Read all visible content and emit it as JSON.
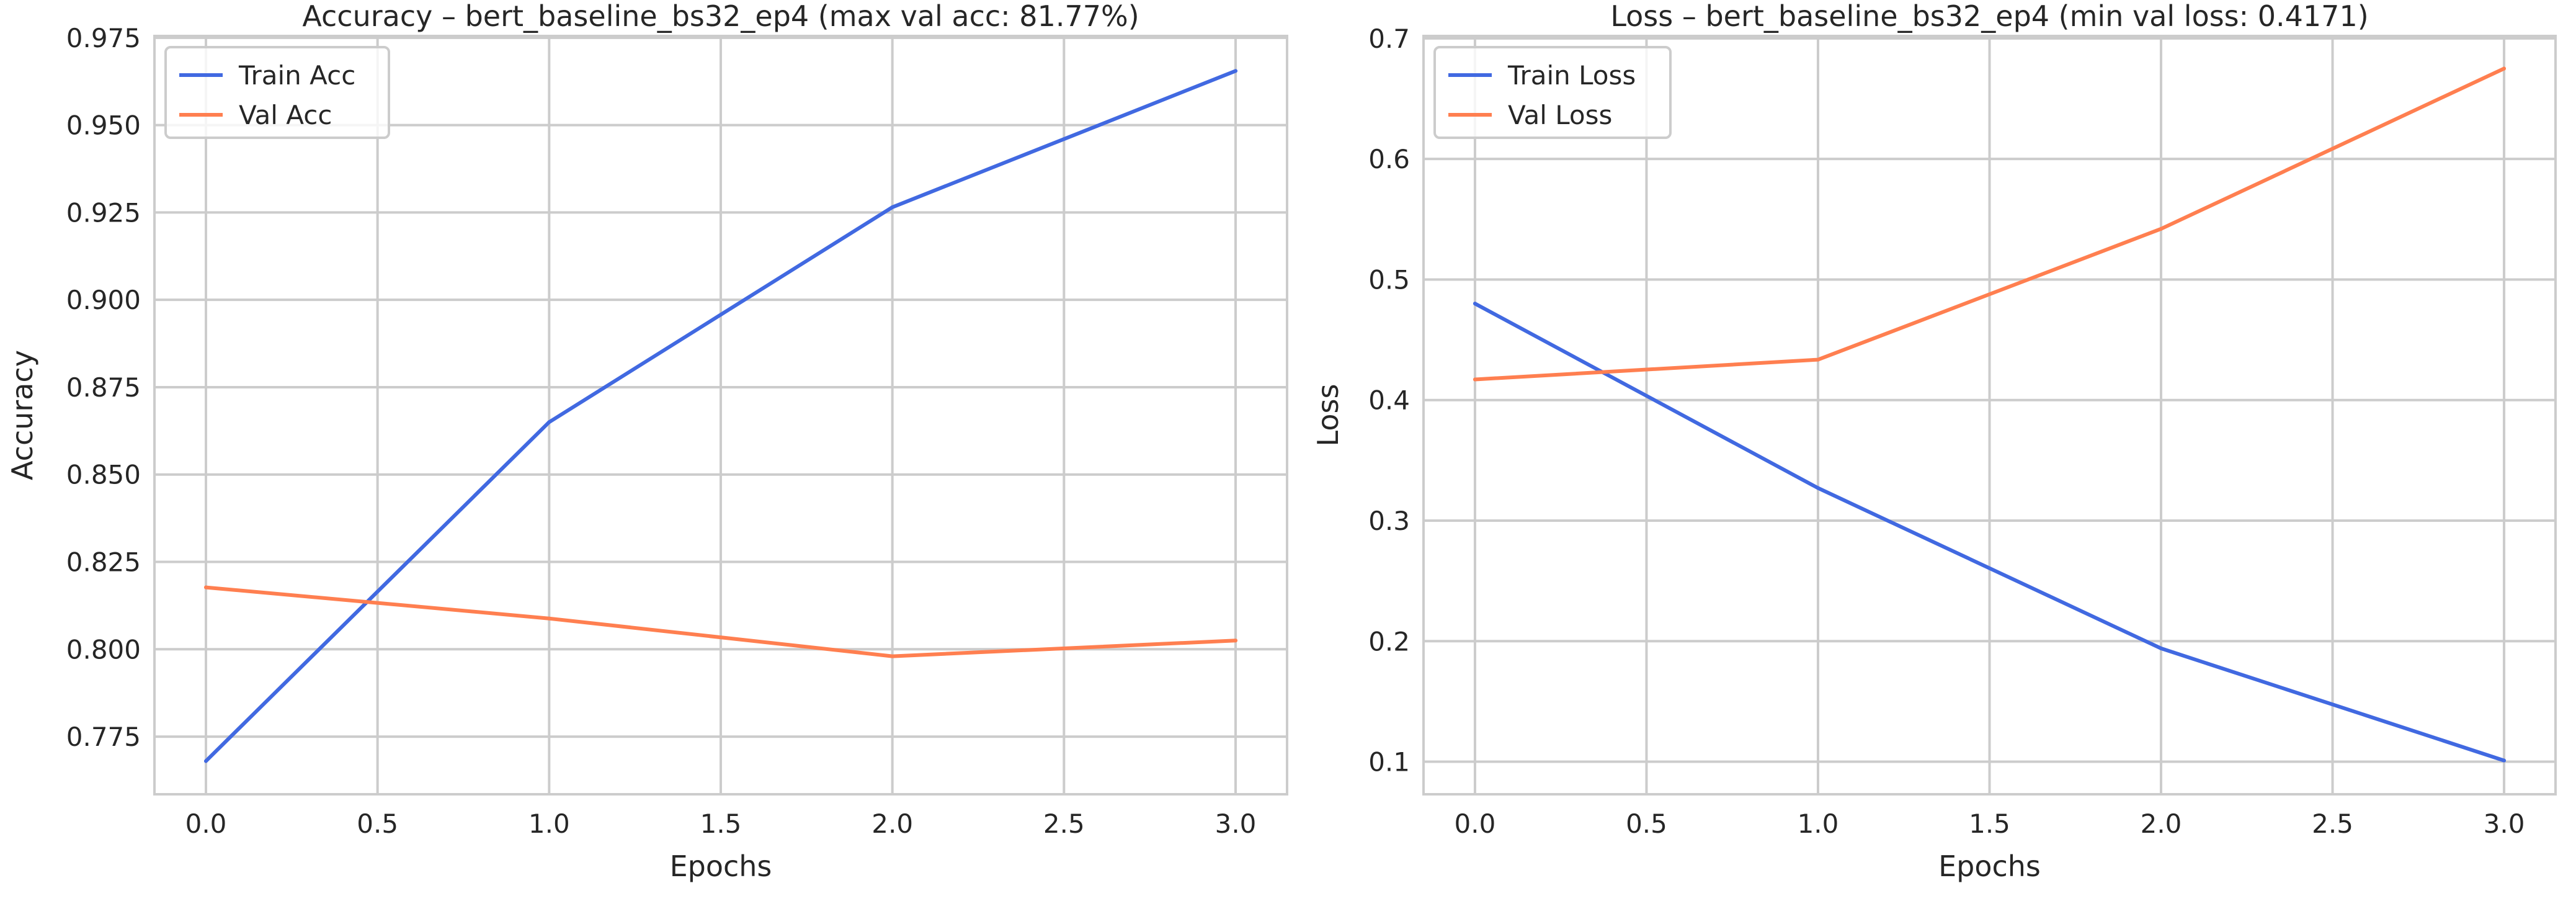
{
  "chart_data": [
    {
      "type": "line",
      "title": "Accuracy – bert_baseline_bs32_ep4 (max val acc: 81.77%)",
      "xlabel": "Epochs",
      "ylabel": "Accuracy",
      "x": [
        0,
        1,
        2,
        3
      ],
      "xticks": [
        "0.0",
        "0.5",
        "1.0",
        "1.5",
        "2.0",
        "2.5",
        "3.0"
      ],
      "yticks": [
        "0.775",
        "0.800",
        "0.825",
        "0.850",
        "0.875",
        "0.900",
        "0.925",
        "0.950",
        "0.975"
      ],
      "xlim": [
        -0.15,
        3.15
      ],
      "ylim": [
        0.7585,
        0.9755
      ],
      "grid": true,
      "legend": "upper left",
      "series": [
        {
          "name": "Train Acc",
          "color": "#4169e1",
          "values": [
            0.768,
            0.865,
            0.9265,
            0.9655
          ]
        },
        {
          "name": "Val Acc",
          "color": "#ff7f50",
          "values": [
            0.8177,
            0.8088,
            0.798,
            0.8025
          ]
        }
      ]
    },
    {
      "type": "line",
      "title": "Loss – bert_baseline_bs32_ep4 (min val loss: 0.4171)",
      "xlabel": "Epochs",
      "ylabel": "Loss",
      "x": [
        0,
        1,
        2,
        3
      ],
      "xticks": [
        "0.0",
        "0.5",
        "1.0",
        "1.5",
        "2.0",
        "2.5",
        "3.0"
      ],
      "yticks": [
        "0.1",
        "0.2",
        "0.3",
        "0.4",
        "0.5",
        "0.6",
        "0.7"
      ],
      "xlim": [
        -0.15,
        3.15
      ],
      "ylim": [
        0.073,
        0.702
      ],
      "grid": true,
      "legend": "upper left",
      "series": [
        {
          "name": "Train Loss",
          "color": "#4169e1",
          "values": [
            0.48,
            0.327,
            0.194,
            0.101
          ]
        },
        {
          "name": "Val Loss",
          "color": "#ff7f50",
          "values": [
            0.4171,
            0.4335,
            0.542,
            0.675
          ]
        }
      ]
    }
  ]
}
